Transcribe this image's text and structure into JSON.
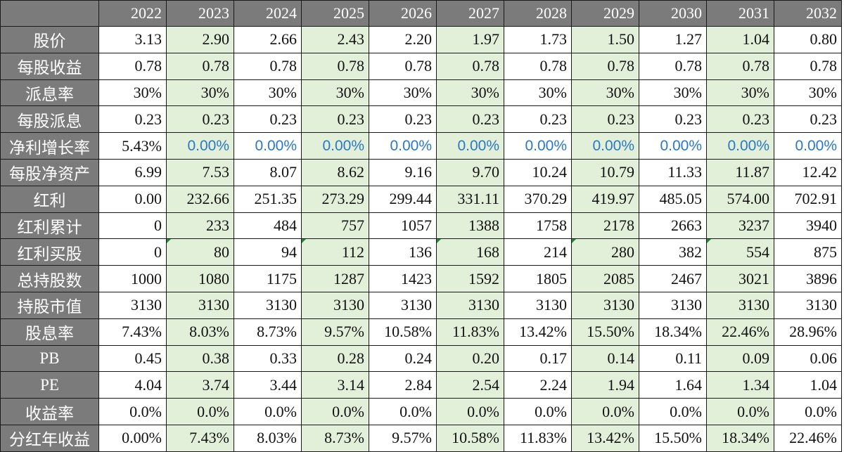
{
  "table": {
    "years": [
      "2022",
      "2023",
      "2024",
      "2025",
      "2026",
      "2027",
      "2028",
      "2029",
      "2030",
      "2031",
      "2032"
    ],
    "rows": [
      {
        "label": "股价",
        "values": [
          "3.13",
          "2.90",
          "2.66",
          "2.43",
          "2.20",
          "1.97",
          "1.73",
          "1.50",
          "1.27",
          "1.04",
          "0.80"
        ]
      },
      {
        "label": "每股收益",
        "values": [
          "0.78",
          "0.78",
          "0.78",
          "0.78",
          "0.78",
          "0.78",
          "0.78",
          "0.78",
          "0.78",
          "0.78",
          "0.78"
        ]
      },
      {
        "label": "派息率",
        "values": [
          "30%",
          "30%",
          "30%",
          "30%",
          "30%",
          "30%",
          "30%",
          "30%",
          "30%",
          "30%",
          "30%"
        ]
      },
      {
        "label": "每股派息",
        "values": [
          "0.23",
          "0.23",
          "0.23",
          "0.23",
          "0.23",
          "0.23",
          "0.23",
          "0.23",
          "0.23",
          "0.23",
          "0.23"
        ]
      },
      {
        "label": "净利增长率",
        "values": [
          "5.43%",
          "0.00%",
          "0.00%",
          "0.00%",
          "0.00%",
          "0.00%",
          "0.00%",
          "0.00%",
          "0.00%",
          "0.00%",
          "0.00%"
        ]
      },
      {
        "label": "每股净资产",
        "values": [
          "6.99",
          "7.53",
          "8.07",
          "8.62",
          "9.16",
          "9.70",
          "10.24",
          "10.79",
          "11.33",
          "11.87",
          "12.42"
        ]
      },
      {
        "label": "红利",
        "values": [
          "0.00",
          "232.66",
          "251.35",
          "273.29",
          "299.44",
          "331.11",
          "370.29",
          "419.97",
          "485.05",
          "574.00",
          "702.91"
        ]
      },
      {
        "label": "红利累计",
        "values": [
          "0",
          "233",
          "484",
          "757",
          "1057",
          "1388",
          "1758",
          "2178",
          "2663",
          "3237",
          "3940"
        ]
      },
      {
        "label": "红利买股",
        "values": [
          "0",
          "80",
          "94",
          "112",
          "136",
          "168",
          "214",
          "280",
          "382",
          "554",
          "875"
        ]
      },
      {
        "label": "总持股数",
        "values": [
          "1000",
          "1080",
          "1175",
          "1287",
          "1423",
          "1592",
          "1805",
          "2085",
          "2467",
          "3021",
          "3896"
        ]
      },
      {
        "label": "持股市值",
        "values": [
          "3130",
          "3130",
          "3130",
          "3130",
          "3130",
          "3130",
          "3130",
          "3130",
          "3130",
          "3130",
          "3130"
        ]
      },
      {
        "label": "股息率",
        "values": [
          "7.43%",
          "8.03%",
          "8.73%",
          "9.57%",
          "10.58%",
          "11.83%",
          "13.42%",
          "15.50%",
          "18.34%",
          "22.46%",
          "28.96%"
        ]
      },
      {
        "label": "PB",
        "values": [
          "0.45",
          "0.38",
          "0.33",
          "0.28",
          "0.24",
          "0.20",
          "0.17",
          "0.14",
          "0.11",
          "0.09",
          "0.06"
        ]
      },
      {
        "label": "PE",
        "values": [
          "4.04",
          "3.74",
          "3.44",
          "3.14",
          "2.84",
          "2.54",
          "2.24",
          "1.94",
          "1.64",
          "1.34",
          "1.04"
        ]
      },
      {
        "label": "收益率",
        "values": [
          "0.0%",
          "0.0%",
          "0.0%",
          "0.0%",
          "0.0%",
          "0.0%",
          "0.0%",
          "0.0%",
          "0.0%",
          "0.0%",
          "0.0%"
        ]
      },
      {
        "label": "分红年收益",
        "values": [
          "0.00%",
          "7.43%",
          "8.03%",
          "8.73%",
          "9.57%",
          "10.58%",
          "11.83%",
          "13.42%",
          "15.50%",
          "18.34%",
          "22.46%"
        ]
      }
    ]
  },
  "colors": {
    "header_bg": "#7b7b7b",
    "header_text": "#ffffff",
    "highlight_column_bg": "#e2efd9",
    "input_value_text": "#2a78c8",
    "comment_marker": "#1e8a2e",
    "grid_line": "#1a1a1a"
  }
}
